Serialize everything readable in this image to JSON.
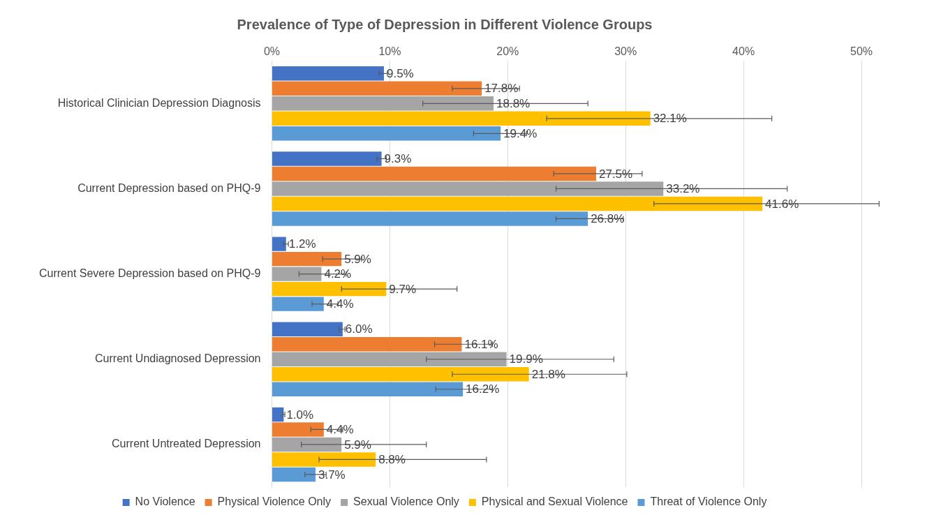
{
  "chart_data": {
    "type": "bar",
    "orientation": "horizontal",
    "title": "Prevalence of Type of Depression in Different Violence Groups",
    "categories": [
      "Historical Clinician Depression Diagnosis",
      "Current Depression based on PHQ-9",
      "Current Severe Depression based on PHQ-9",
      "Current Undiagnosed Depression",
      "Current Untreated Depression"
    ],
    "xlim": [
      0,
      50
    ],
    "xticks": [
      {
        "value": 0,
        "label": "0%"
      },
      {
        "value": 10,
        "label": "10%"
      },
      {
        "value": 20,
        "label": "20%"
      },
      {
        "value": 30,
        "label": "30%"
      },
      {
        "value": 40,
        "label": "40%"
      },
      {
        "value": 50,
        "label": "50%"
      }
    ],
    "grid": "x",
    "legend": "bottom",
    "series": [
      {
        "name": "No Violence",
        "color": "#4472c4",
        "values": [
          9.5,
          9.3,
          1.2,
          6.0,
          1.0
        ],
        "value_labels": [
          "9.5%",
          "9.3%",
          "1.2%",
          "6.0%",
          "1.0%"
        ],
        "errors": [
          [
            9.1,
            9.8
          ],
          [
            8.9,
            9.7
          ],
          [
            1.0,
            1.4
          ],
          [
            5.7,
            6.2
          ],
          [
            0.9,
            1.1
          ]
        ]
      },
      {
        "name": "Physical Violence Only",
        "color": "#ed7d31",
        "values": [
          17.8,
          27.5,
          5.9,
          16.1,
          4.4
        ],
        "value_labels": [
          "17.8%",
          "27.5%",
          "5.9%",
          "16.1%",
          "4.4%"
        ],
        "errors": [
          [
            15.3,
            21.0
          ],
          [
            23.9,
            31.4
          ],
          [
            4.3,
            7.6
          ],
          [
            13.8,
            18.7
          ],
          [
            3.3,
            6.0
          ]
        ]
      },
      {
        "name": "Sexual Violence Only",
        "color": "#a5a5a5",
        "values": [
          18.8,
          33.2,
          4.2,
          19.9,
          5.9
        ],
        "value_labels": [
          "18.8%",
          "33.2%",
          "4.2%",
          "19.9%",
          "5.9%"
        ],
        "errors": [
          [
            12.8,
            26.8
          ],
          [
            24.1,
            43.7
          ],
          [
            2.3,
            6.3
          ],
          [
            13.1,
            29.0
          ],
          [
            2.5,
            13.1
          ]
        ]
      },
      {
        "name": "Physical and Sexual Violence",
        "color": "#ffc000",
        "values": [
          32.1,
          41.6,
          9.7,
          21.8,
          8.8
        ],
        "value_labels": [
          "32.1%",
          "41.6%",
          "9.7%",
          "21.8%",
          "8.8%"
        ],
        "errors": [
          [
            23.3,
            42.4
          ],
          [
            32.4,
            51.5
          ],
          [
            5.9,
            15.7
          ],
          [
            15.3,
            30.1
          ],
          [
            4.0,
            18.2
          ]
        ]
      },
      {
        "name": "Threat of Violence Only",
        "color": "#5b9bd5",
        "values": [
          19.4,
          26.8,
          4.4,
          16.2,
          3.7
        ],
        "value_labels": [
          "19.4%",
          "26.8%",
          "4.4%",
          "16.2%",
          "3.7%"
        ],
        "errors": [
          [
            17.1,
            21.6
          ],
          [
            24.1,
            29.8
          ],
          [
            3.4,
            5.6
          ],
          [
            13.9,
            18.7
          ],
          [
            2.8,
            4.6
          ]
        ]
      }
    ]
  }
}
